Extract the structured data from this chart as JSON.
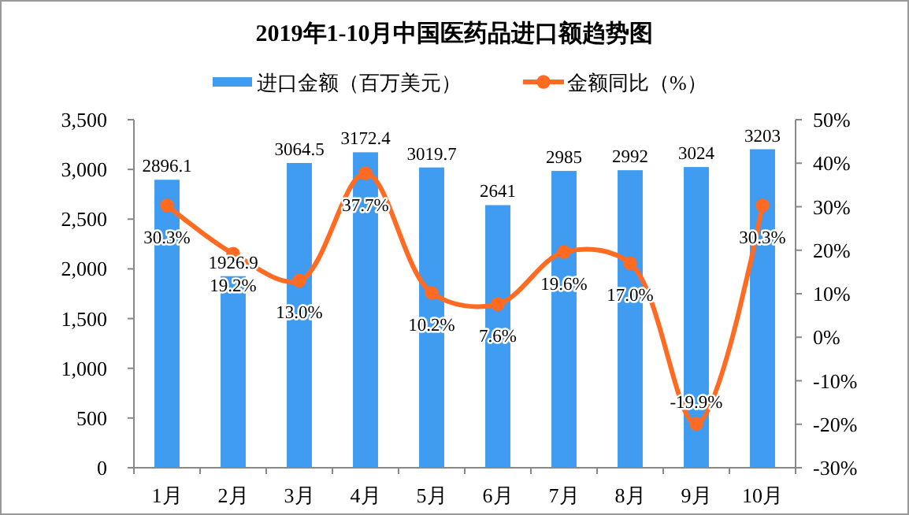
{
  "chart_data": {
    "type": "bar",
    "title": "2019年1-10月中国医药品进口额趋势图",
    "categories": [
      "1月",
      "2月",
      "3月",
      "4月",
      "5月",
      "6月",
      "7月",
      "8月",
      "9月",
      "10月"
    ],
    "series": [
      {
        "name": "进口金额（百万美元）",
        "color": "#409cf0",
        "values": [
          2896.1,
          1926.9,
          3064.5,
          3172.4,
          3019.7,
          2641,
          2985,
          2992,
          3024,
          3203
        ],
        "value_labels": [
          "2896.1",
          "1926.9",
          "3064.5",
          "3172.4",
          "3019.7",
          "2641",
          "2985",
          "2992",
          "3024",
          "3203"
        ]
      },
      {
        "name": "金额同比（%）",
        "type": "line",
        "axis": "y2",
        "color": "#ff6b23",
        "values": [
          30.3,
          19.2,
          13.0,
          37.7,
          10.2,
          7.6,
          19.6,
          17.0,
          -19.9,
          30.3
        ],
        "value_labels": [
          "30.3%",
          "19.2%",
          "13.0%",
          "37.7%",
          "10.2%",
          "7.6%",
          "19.6%",
          "17.0%",
          "-19.9%",
          "30.3%"
        ]
      }
    ],
    "ylim": [
      0,
      3500
    ],
    "yticks": [
      0,
      500,
      {
        "value": 1000,
        "label": "1,000"
      },
      {
        "value": 1500,
        "label": "1,500"
      },
      {
        "value": 2000,
        "label": "2,000"
      },
      {
        "value": 2500,
        "label": "2,500"
      },
      {
        "value": 3000,
        "label": "3,000"
      },
      {
        "value": 3500,
        "label": "3,500"
      }
    ],
    "y2lim": [
      -30,
      50
    ],
    "y2ticks": [
      {
        "value": -30,
        "label": "-30%"
      },
      {
        "value": -20,
        "label": "-20%"
      },
      {
        "value": -10,
        "label": "-10%"
      },
      {
        "value": 0,
        "label": "0%"
      },
      {
        "value": 10,
        "label": "10%"
      },
      {
        "value": 20,
        "label": "20%"
      },
      {
        "value": 30,
        "label": "30%"
      },
      {
        "value": 40,
        "label": "40%"
      },
      {
        "value": 50,
        "label": "50%"
      }
    ],
    "legend": "top",
    "marker": "circle"
  }
}
